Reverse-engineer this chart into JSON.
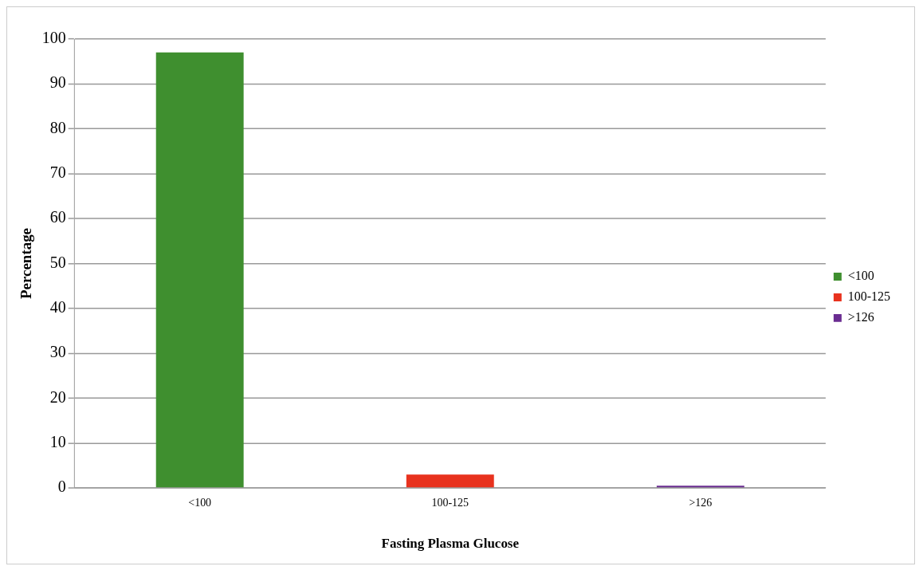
{
  "chart_data": {
    "type": "bar",
    "xlabel": "Fasting Plasma Glucose",
    "ylabel": "Percentage",
    "categories": [
      "<100",
      "100-125",
      ">126"
    ],
    "series": [
      {
        "name": "<100",
        "color": "#3f8f2f",
        "values": [
          97,
          null,
          null
        ]
      },
      {
        "name": "100-125",
        "color": "#e8321e",
        "values": [
          null,
          3,
          null
        ]
      },
      {
        "name": ">126",
        "color": "#6a2c91",
        "values": [
          null,
          null,
          0.5
        ]
      }
    ],
    "ylim": [
      0,
      100
    ],
    "yticks": [
      0,
      10,
      20,
      30,
      40,
      50,
      60,
      70,
      80,
      90,
      100
    ],
    "grid": "y",
    "legend": "right"
  }
}
